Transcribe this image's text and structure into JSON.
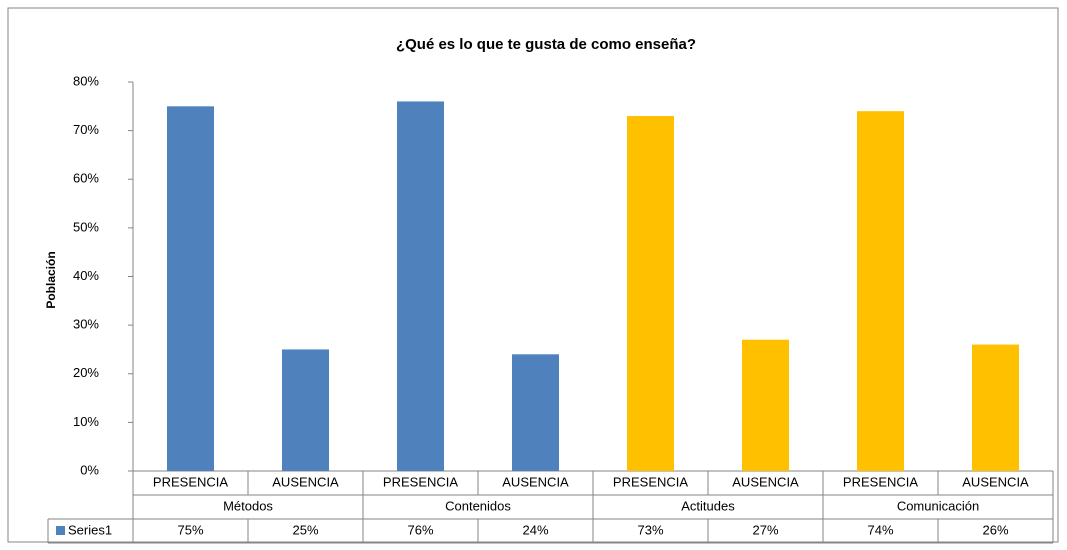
{
  "chart_data": {
    "type": "bar",
    "title": "¿Qué es lo que te gusta de como enseña?",
    "y_label": "Población",
    "categories": [
      "PRESENCIA",
      "AUSENCIA",
      "PRESENCIA",
      "AUSENCIA",
      "PRESENCIA",
      "AUSENCIA",
      "PRESENCIA",
      "AUSENCIA"
    ],
    "groups": [
      {
        "label": "Métodos",
        "span": 2
      },
      {
        "label": "Contenidos",
        "span": 2
      },
      {
        "label": "Actitudes",
        "span": 2
      },
      {
        "label": "Comunicación",
        "span": 2
      }
    ],
    "series": [
      {
        "name": "Series1",
        "color": "#4f81bd",
        "values": [
          75,
          25,
          76,
          24,
          73,
          27,
          74,
          26
        ],
        "value_labels": [
          "75%",
          "25%",
          "76%",
          "24%",
          "73%",
          "27%",
          "74%",
          "26%"
        ],
        "colors": [
          "#4f81bd",
          "#4f81bd",
          "#4f81bd",
          "#4f81bd",
          "#ffc000",
          "#ffc000",
          "#ffc000",
          "#ffc000"
        ]
      }
    ],
    "ylim": [
      0,
      80
    ],
    "yticks": [
      {
        "value": 0,
        "label": "0%"
      },
      {
        "value": 10,
        "label": "10%"
      },
      {
        "value": 20,
        "label": "20%"
      },
      {
        "value": 30,
        "label": "30%"
      },
      {
        "value": 40,
        "label": "40%"
      },
      {
        "value": 50,
        "label": "50%"
      },
      {
        "value": 60,
        "label": "60%"
      },
      {
        "value": 70,
        "label": "70%"
      },
      {
        "value": 80,
        "label": "80%"
      }
    ],
    "grid": false,
    "data_table": true
  }
}
